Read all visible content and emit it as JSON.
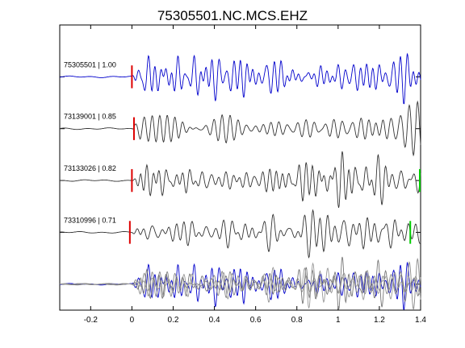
{
  "chart_data": {
    "type": "line",
    "title": "75305501.NC.MCS.EHZ",
    "xlabel": "",
    "ylabel": "",
    "xlim": [
      -0.35,
      1.4
    ],
    "xticks": [
      -0.2,
      0,
      0.2,
      0.4,
      0.6,
      0.8,
      1,
      1.2,
      1.4
    ],
    "xtick_labels": [
      "-0.2",
      "0",
      "0.2",
      "0.4",
      "0.6",
      "0.8",
      "1",
      "1.2",
      "1.4"
    ],
    "ylim": [
      0.5,
      6.0
    ],
    "yticks": [
      1,
      2,
      3,
      4,
      5
    ],
    "grid": false,
    "traces": [
      {
        "label": "75305501 | 1.00",
        "offset": 5,
        "color": "#0000cc",
        "seed": 1,
        "pick_red": 0.0,
        "pick_green": null
      },
      {
        "label": "73139001 | 0.85",
        "offset": 4,
        "color": "#333333",
        "seed": 2,
        "pick_red": 0.01,
        "pick_green": null
      },
      {
        "label": "73133026 | 0.82",
        "offset": 3,
        "color": "#333333",
        "seed": 3,
        "pick_red": 0.0,
        "pick_green": 1.4
      },
      {
        "label": "73310996 | 0.71",
        "offset": 2,
        "color": "#333333",
        "seed": 4,
        "pick_red": -0.01,
        "pick_green": 1.35
      }
    ],
    "overlay": {
      "offset": 1,
      "colors": [
        "#0000cc",
        "#888888",
        "#777777",
        "#999999"
      ]
    },
    "red_color": "#dd0000",
    "green_color": "#00cc00"
  }
}
